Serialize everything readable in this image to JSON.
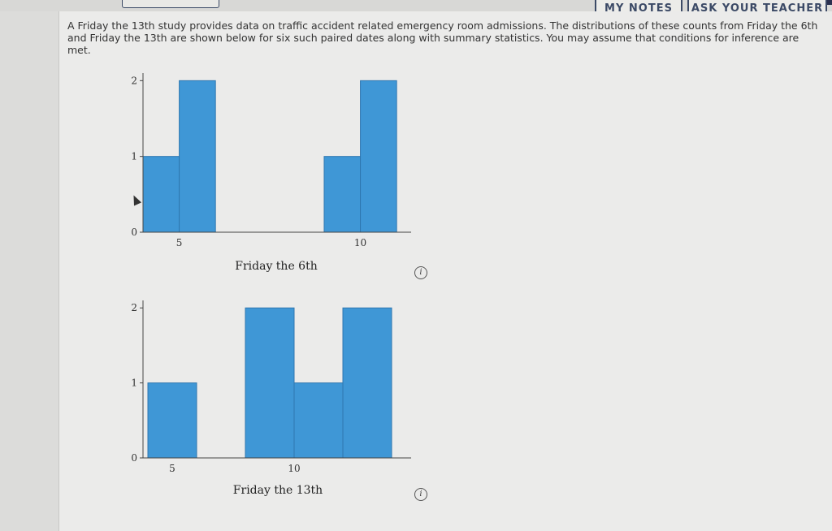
{
  "header": {
    "buttons": [
      {
        "label": "MY NOTES"
      },
      {
        "label": "ASK YOUR TEACHER"
      }
    ]
  },
  "problem": {
    "text_line1": "A Friday the 13th study provides data on traffic accident related emergency room admissions. The distributions of these counts from Friday the 6th",
    "text_line2": "and Friday the 13th are shown below for six such paired dates along with summary statistics. You may assume that conditions for inference are met."
  },
  "icons": {
    "info": "info-icon",
    "cursor": "mouse-pointer-icon"
  },
  "colors": {
    "bar_fill": "#3f97d6",
    "bar_stroke": "#2f77b0"
  },
  "chart_data": [
    {
      "type": "bar",
      "title": "",
      "xlabel": "Friday the 6th",
      "ylabel": "",
      "bins": [
        {
          "start": 4,
          "end": 5,
          "count": 1
        },
        {
          "start": 5,
          "end": 6,
          "count": 2
        },
        {
          "start": 9,
          "end": 10,
          "count": 1
        },
        {
          "start": 10,
          "end": 11,
          "count": 2
        }
      ],
      "xticks": [
        5,
        10
      ],
      "yticks": [
        0,
        1,
        2
      ],
      "xlim": [
        4,
        11.4
      ],
      "ylim": [
        0,
        2.1
      ]
    },
    {
      "type": "bar",
      "title": "",
      "xlabel": "Friday the 13th",
      "ylabel": "",
      "bins": [
        {
          "start": 4,
          "end": 6,
          "count": 1
        },
        {
          "start": 8,
          "end": 10,
          "count": 2
        },
        {
          "start": 10,
          "end": 12,
          "count": 1
        },
        {
          "start": 12,
          "end": 14,
          "count": 2
        }
      ],
      "xticks": [
        5,
        10
      ],
      "yticks": [
        0,
        1,
        2
      ],
      "xlim": [
        3.8,
        14.8
      ],
      "ylim": [
        0,
        2.1
      ]
    }
  ]
}
